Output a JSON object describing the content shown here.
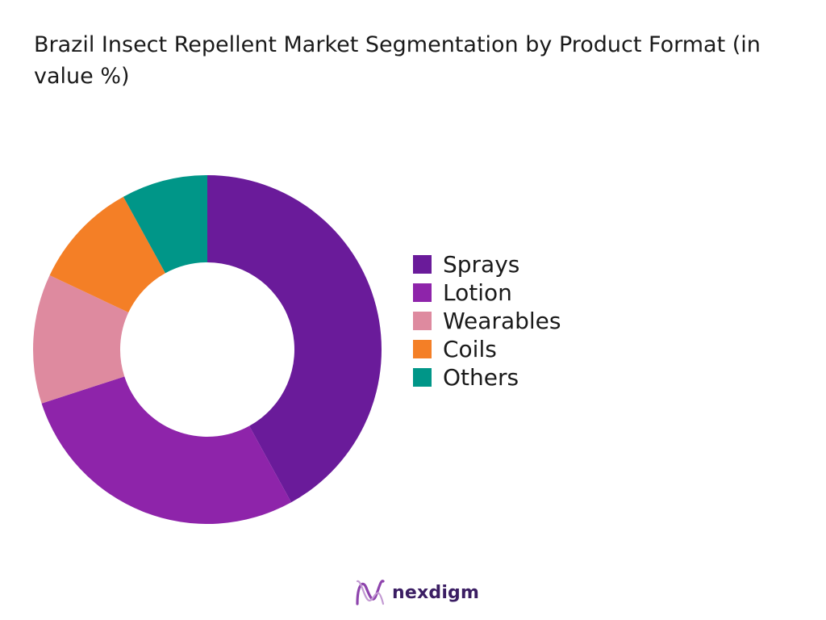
{
  "title": "Brazil Insect Repellent Market  Segmentation by Product Format (in value %)",
  "brand": {
    "name": "nexdigm",
    "logo_icon": "nexdigm-wave-logo-icon"
  },
  "chart_data": {
    "type": "pie",
    "variant": "donut",
    "title": "Brazil Insect Repellent Market  Segmentation by Product Format (in value %)",
    "categories": [
      "Sprays",
      "Lotion",
      "Wearables",
      "Coils",
      "Others"
    ],
    "values": [
      42,
      28,
      12,
      10,
      8
    ],
    "colors": [
      "#6a1b9a",
      "#8e24aa",
      "#de8a9f",
      "#f47f26",
      "#009688"
    ],
    "start_angle": "12 o'clock",
    "direction": "clockwise",
    "legend": "right"
  }
}
